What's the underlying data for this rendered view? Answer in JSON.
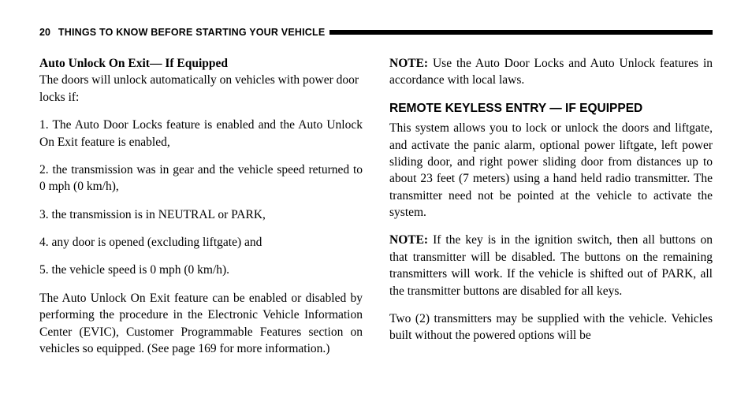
{
  "header": {
    "page_number": "20",
    "section_title": "THINGS TO KNOW BEFORE STARTING YOUR VEHICLE"
  },
  "left": {
    "heading": "Auto Unlock On Exit— If Equipped",
    "intro": "The doors will unlock automatically on vehicles with power door locks if:",
    "item1": "1.  The Auto Door Locks feature is enabled and the Auto Unlock On Exit feature is enabled,",
    "item2": "2.  the transmission was in gear and the vehicle speed returned to 0 mph (0 km/h),",
    "item3": "3.  the transmission is in NEUTRAL or PARK,",
    "item4": "4.  any door is opened (excluding liftgate) and",
    "item5": "5.  the vehicle speed is 0 mph (0 km/h).",
    "footer": "The Auto Unlock On Exit feature can be enabled or disabled by performing the procedure in the Electronic Vehicle Information Center (EVIC), Customer Programmable Features section on vehicles so equipped. (See page 169 for more information.)"
  },
  "right": {
    "note1_label": "NOTE:",
    "note1_body": " Use the Auto Door Locks and Auto Unlock features in accordance with local laws.",
    "heading": "REMOTE KEYLESS ENTRY — IF EQUIPPED",
    "body1": "This system allows you to lock or unlock the doors and liftgate, and activate the panic alarm, optional power liftgate, left power sliding door, and right power sliding door from distances up to about 23 feet (7 meters) using a hand held radio transmitter. The transmitter need not be pointed at the vehicle to activate the system.",
    "note2_label": "NOTE:",
    "note2_body": " If the key is in the ignition switch, then all buttons on that transmitter will be disabled. The buttons on the remaining transmitters will work. If the vehicle is shifted out of PARK, all the transmitter buttons are disabled for all keys.",
    "body2": "Two (2) transmitters may be supplied with the vehicle. Vehicles built without the powered options will be"
  }
}
